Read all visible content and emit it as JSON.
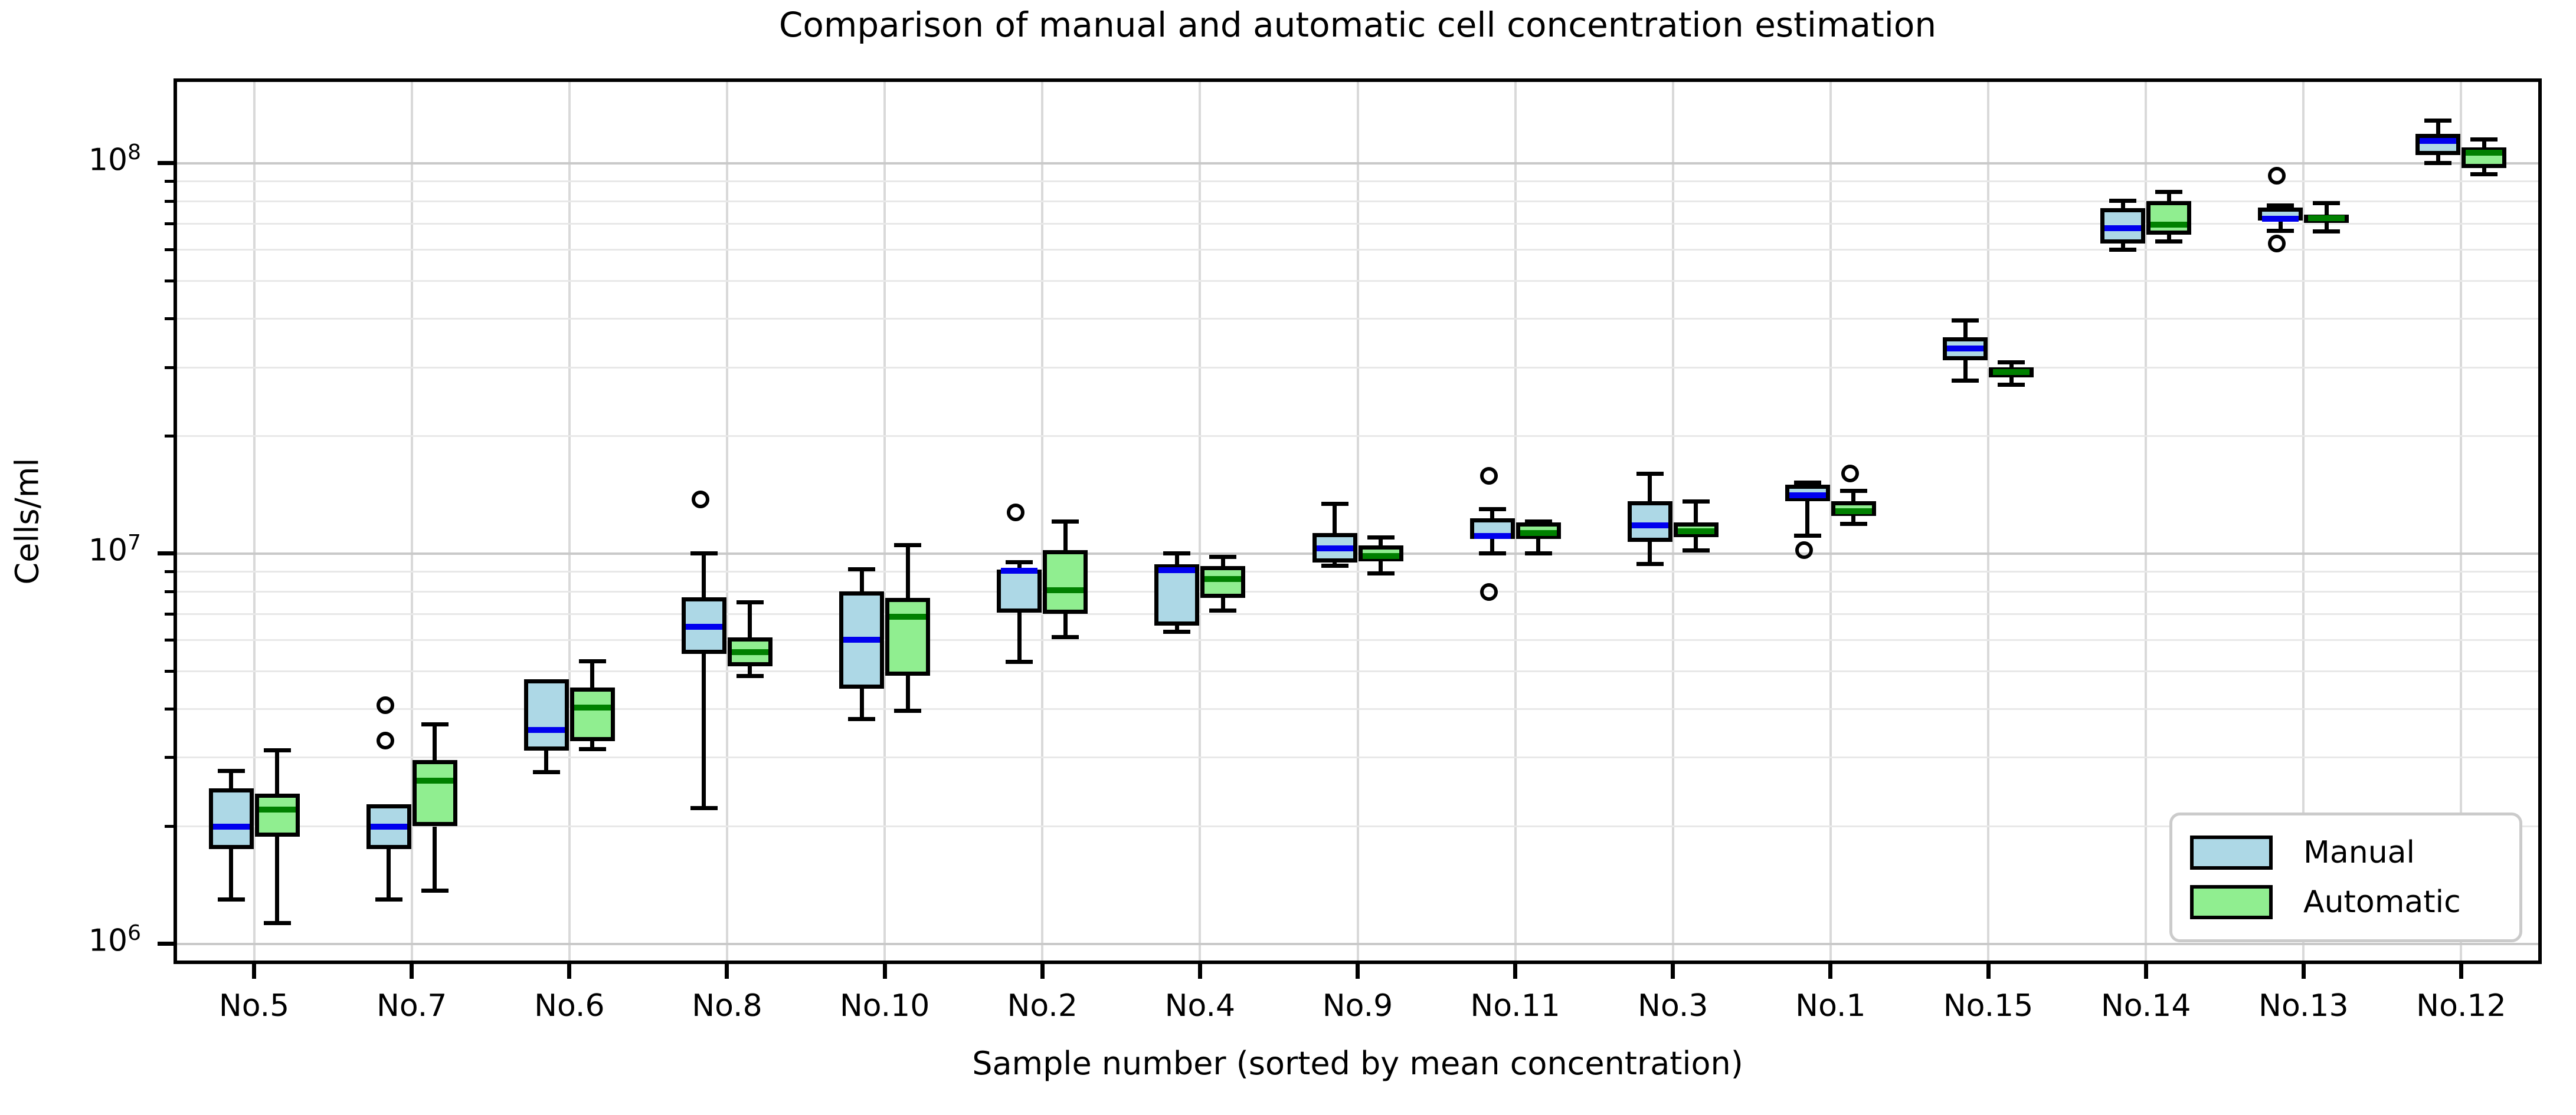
{
  "title": "Comparison of manual and automatic cell concentration estimation",
  "axes": {
    "ylabel": "Cells/ml",
    "xlabel": "Sample number (sorted by mean concentration)"
  },
  "legend": {
    "items": [
      {
        "label": "Manual",
        "color": "#ADD8E6"
      },
      {
        "label": "Automatic",
        "color": "#90EE90"
      }
    ]
  },
  "chart_data": {
    "type": "boxplot",
    "title": "Comparison of manual and automatic cell concentration estimation",
    "xlabel": "Sample number (sorted by mean concentration)",
    "ylabel": "Cells/ml",
    "yscale": "log",
    "ylim": [
      897000,
      163300000
    ],
    "grid": true,
    "legend_position": "lower right",
    "y_major_ticks": [
      {
        "exp": 6
      },
      {
        "exp": 7
      },
      {
        "exp": 8
      }
    ],
    "categories": [
      "No.5",
      "No.7",
      "No.6",
      "No.8",
      "No.10",
      "No.2",
      "No.4",
      "No.9",
      "No.11",
      "No.3",
      "No.1",
      "No.15",
      "No.14",
      "No.13",
      "No.12"
    ],
    "series": [
      {
        "name": "Manual",
        "box_color": "#ADD8E6",
        "median_color": "#0000EE",
        "boxes": [
          {
            "whislo": 1300000.0,
            "q1": 1750000.0,
            "med": 2000000.0,
            "q3": 2500000.0,
            "whishi": 2770000.0,
            "fliers": []
          },
          {
            "whislo": 1300000.0,
            "q1": 1750000.0,
            "med": 2000000.0,
            "q3": 2280000.0,
            "whishi": 2280000.0,
            "fliers": [
              3250000.0,
              4000000.0
            ]
          },
          {
            "whislo": 2750000.0,
            "q1": 3130000.0,
            "med": 3530000.0,
            "q3": 4760000.0,
            "whishi": 4760000.0,
            "fliers": []
          },
          {
            "whislo": 2230000.0,
            "q1": 5540000.0,
            "med": 6500000.0,
            "q3": 7730000.0,
            "whishi": 10000000.0,
            "fliers": [
              13500000.0
            ]
          },
          {
            "whislo": 3770000.0,
            "q1": 4500000.0,
            "med": 6010000.0,
            "q3": 8000000.0,
            "whishi": 9100000.0,
            "fliers": []
          },
          {
            "whislo": 5270000.0,
            "q1": 7050000.0,
            "med": 9050000.0,
            "q3": 9100000.0,
            "whishi": 9500000.0,
            "fliers": [
              12500000.0
            ]
          },
          {
            "whislo": 6300000.0,
            "q1": 6530000.0,
            "med": 9070000.0,
            "q3": 9400000.0,
            "whishi": 10000000.0,
            "fliers": []
          },
          {
            "whislo": 9300000.0,
            "q1": 9500000.0,
            "med": 10300000.0,
            "q3": 11300000.0,
            "whishi": 13400000.0,
            "fliers": []
          },
          {
            "whislo": 10000000.0,
            "q1": 10900000.0,
            "med": 11100000.0,
            "q3": 12300000.0,
            "whishi": 13000000.0,
            "fliers": [
              7800000.0,
              15500000.0
            ]
          },
          {
            "whislo": 9400000.0,
            "q1": 10700000.0,
            "med": 11800000.0,
            "q3": 13600000.0,
            "whishi": 16000000.0,
            "fliers": []
          },
          {
            "whislo": 11100000.0,
            "q1": 13600000.0,
            "med": 14100000.0,
            "q3": 15000000.0,
            "whishi": 15200000.0,
            "fliers": [
              10000000.0
            ]
          },
          {
            "whislo": 27700000.0,
            "q1": 31300000.0,
            "med": 33500000.0,
            "q3": 35800000.0,
            "whishi": 39600000.0,
            "fliers": []
          },
          {
            "whislo": 60100000.0,
            "q1": 62300000.0,
            "med": 68300000.0,
            "q3": 76700000.0,
            "whishi": 80300000.0,
            "fliers": []
          },
          {
            "whislo": 67200000.0,
            "q1": 71300000.0,
            "med": 72000000.0,
            "q3": 77000000.0,
            "whishi": 78000000.0,
            "fliers": [
              61000000.0,
              91000000.0
            ]
          },
          {
            "whislo": 100000000.0,
            "q1": 105000000.0,
            "med": 114000000.0,
            "q3": 119000000.0,
            "whishi": 128500000.0,
            "fliers": []
          }
        ]
      },
      {
        "name": "Automatic",
        "box_color": "#90EE90",
        "median_color": "#008000",
        "boxes": [
          {
            "whislo": 1130000.0,
            "q1": 1880000.0,
            "med": 2210000.0,
            "q3": 2430000.0,
            "whishi": 3130000.0,
            "fliers": []
          },
          {
            "whislo": 1370000.0,
            "q1": 2000000.0,
            "med": 2620000.0,
            "q3": 2960000.0,
            "whishi": 3650000.0,
            "fliers": []
          },
          {
            "whislo": 3160000.0,
            "q1": 3310000.0,
            "med": 4030000.0,
            "q3": 4530000.0,
            "whishi": 5290000.0,
            "fliers": []
          },
          {
            "whislo": 4850000.0,
            "q1": 5140000.0,
            "med": 5600000.0,
            "q3": 6100000.0,
            "whishi": 7500000.0,
            "fliers": []
          },
          {
            "whislo": 3960000.0,
            "q1": 4870000.0,
            "med": 6900000.0,
            "q3": 7700000.0,
            "whishi": 10500000.0,
            "fliers": []
          },
          {
            "whislo": 6100000.0,
            "q1": 7000000.0,
            "med": 8050000.0,
            "q3": 10200000.0,
            "whishi": 12100000.0,
            "fliers": []
          },
          {
            "whislo": 7150000.0,
            "q1": 7700000.0,
            "med": 8600000.0,
            "q3": 9300000.0,
            "whishi": 9800000.0,
            "fliers": []
          },
          {
            "whislo": 8900000.0,
            "q1": 9560000.0,
            "med": 9850000.0,
            "q3": 10500000.0,
            "whishi": 11000000.0,
            "fliers": []
          },
          {
            "whislo": 10000000.0,
            "q1": 10900000.0,
            "med": 11300000.0,
            "q3": 12000000.0,
            "whishi": 12100000.0,
            "fliers": []
          },
          {
            "whislo": 10200000.0,
            "q1": 11000000.0,
            "med": 11400000.0,
            "q3": 12000000.0,
            "whishi": 13600000.0,
            "fliers": []
          },
          {
            "whislo": 11900000.0,
            "q1": 12500000.0,
            "med": 12850000.0,
            "q3": 13600000.0,
            "whishi": 14500000.0,
            "fliers": [
              15700000.0
            ]
          },
          {
            "whislo": 27100000.0,
            "q1": 28300000.0,
            "med": 29200000.0,
            "q3": 30000000.0,
            "whishi": 30900000.0,
            "fliers": []
          },
          {
            "whislo": 63000000.0,
            "q1": 65600000.0,
            "med": 69600000.0,
            "q3": 80000000.0,
            "whishi": 84500000.0,
            "fliers": []
          },
          {
            "whislo": 67000000.0,
            "q1": 71000000.0,
            "med": 72300000.0,
            "q3": 74000000.0,
            "whishi": 79000000.0,
            "fliers": []
          },
          {
            "whislo": 93900000.0,
            "q1": 97200000.0,
            "med": 106300000.0,
            "q3": 109800000.0,
            "whishi": 115300000.0,
            "fliers": []
          }
        ]
      }
    ]
  }
}
